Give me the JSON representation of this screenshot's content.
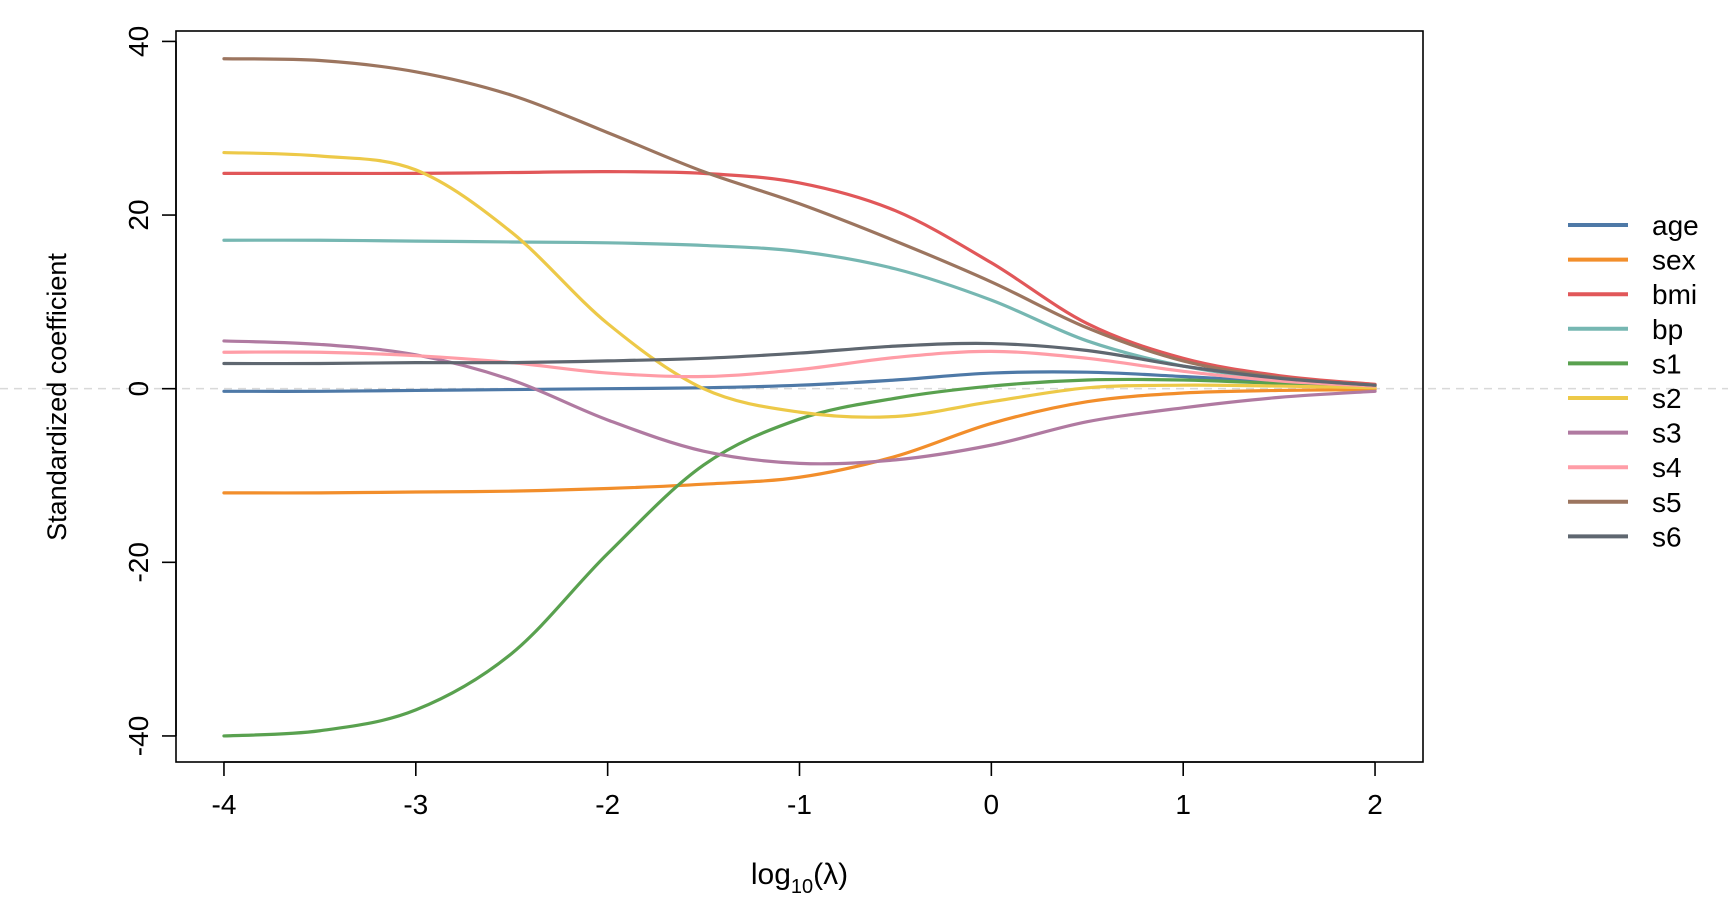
{
  "chart_data": {
    "type": "line",
    "xlabel": "log10(λ)",
    "xlabel_base": "log",
    "xlabel_sub": "10",
    "xlabel_tail": "(λ)",
    "ylabel": "Standardized coefficient",
    "xlim": [
      -4.25,
      2.25
    ],
    "ylim": [
      -43,
      41.2
    ],
    "xticks": [
      -4,
      -3,
      -2,
      -1,
      0,
      1,
      2
    ],
    "xtick_labels": [
      "-4",
      "-3",
      "-2",
      "-1",
      "0",
      "1",
      "2"
    ],
    "yticks": [
      -40,
      -20,
      0,
      20,
      40
    ],
    "ytick_labels": [
      "-40",
      "-20",
      "0",
      "20",
      "40"
    ],
    "zero_reference_line": true,
    "reference_line_color": "#d9d9d9",
    "grid": false,
    "legend_position": "right",
    "x": [
      -4,
      -3.5,
      -3,
      -2.5,
      -2,
      -1.5,
      -1,
      -0.5,
      0,
      0.5,
      1,
      1.5,
      2
    ],
    "series": [
      {
        "name": "age",
        "color": "#4e79a7",
        "values": [
          -0.3,
          -0.3,
          -0.2,
          -0.1,
          0.0,
          0.1,
          0.4,
          1.0,
          1.8,
          1.9,
          1.4,
          0.8,
          0.2
        ]
      },
      {
        "name": "sex",
        "color": "#f28e2b",
        "values": [
          -12.0,
          -12.0,
          -11.9,
          -11.8,
          -11.5,
          -11.0,
          -10.2,
          -7.8,
          -4.0,
          -1.5,
          -0.5,
          -0.2,
          -0.1
        ]
      },
      {
        "name": "bmi",
        "color": "#e15759",
        "values": [
          24.8,
          24.8,
          24.8,
          24.9,
          25.0,
          24.8,
          23.7,
          20.5,
          14.5,
          7.5,
          3.5,
          1.5,
          0.5
        ]
      },
      {
        "name": "bp",
        "color": "#76b7b2",
        "values": [
          17.1,
          17.1,
          17.0,
          16.9,
          16.8,
          16.5,
          15.8,
          13.8,
          10.2,
          5.5,
          2.6,
          1.1,
          0.4
        ]
      },
      {
        "name": "s1",
        "color": "#59a14f",
        "values": [
          -40.0,
          -39.4,
          -37.0,
          -30.5,
          -19.0,
          -8.8,
          -3.5,
          -1.1,
          0.3,
          1.0,
          1.0,
          0.6,
          0.2
        ]
      },
      {
        "name": "s2",
        "color": "#edc948",
        "values": [
          27.2,
          26.8,
          25.2,
          18.0,
          7.5,
          0.0,
          -2.7,
          -3.2,
          -1.5,
          0.1,
          0.4,
          0.3,
          0.1
        ]
      },
      {
        "name": "s3",
        "color": "#b07aa1",
        "values": [
          5.5,
          5.1,
          3.9,
          1.0,
          -3.6,
          -7.2,
          -8.6,
          -8.2,
          -6.5,
          -3.8,
          -2.2,
          -1.0,
          -0.3
        ]
      },
      {
        "name": "s4",
        "color": "#ff9da7",
        "values": [
          4.2,
          4.2,
          3.8,
          3.0,
          1.8,
          1.4,
          2.2,
          3.6,
          4.3,
          3.5,
          2.0,
          0.9,
          0.3
        ]
      },
      {
        "name": "s5",
        "color": "#9c755f",
        "values": [
          38.0,
          37.8,
          36.5,
          33.8,
          29.5,
          25.0,
          21.3,
          17.0,
          12.3,
          7.0,
          3.2,
          1.3,
          0.4
        ]
      },
      {
        "name": "s6",
        "color": "#5f6770",
        "values": [
          2.9,
          2.9,
          3.0,
          3.0,
          3.2,
          3.5,
          4.1,
          4.9,
          5.2,
          4.4,
          2.6,
          1.2,
          0.4
        ]
      }
    ]
  }
}
